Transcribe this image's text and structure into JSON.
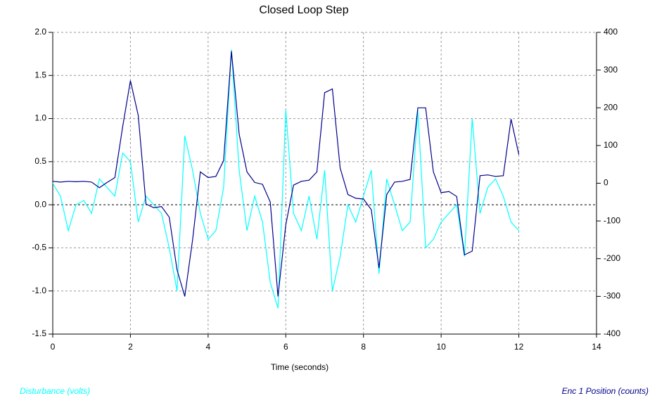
{
  "chart_data": {
    "type": "line",
    "title": "Closed Loop Step",
    "xlabel": "Time (seconds)",
    "x": [
      0,
      0.2,
      0.4,
      0.6,
      0.8,
      1.0,
      1.2,
      1.4,
      1.6,
      1.8,
      2.0,
      2.2,
      2.4,
      2.6,
      2.8,
      3.0,
      3.2,
      3.4,
      3.6,
      3.8,
      4.0,
      4.2,
      4.4,
      4.6,
      4.8,
      5.0,
      5.2,
      5.4,
      5.6,
      5.8,
      6.0,
      6.2,
      6.4,
      6.6,
      6.8,
      7.0,
      7.2,
      7.4,
      7.6,
      7.8,
      8.0,
      8.2,
      8.4,
      8.6,
      8.8,
      9.0,
      9.2,
      9.4,
      9.6,
      9.8,
      10.0,
      10.2,
      10.4,
      10.6,
      10.8,
      11.0,
      11.2,
      11.4,
      11.6,
      11.8,
      12.0
    ],
    "series": [
      {
        "name": "Disturbance (volts)",
        "color": "#00ffff",
        "axis": "y",
        "values": [
          0.25,
          0.1,
          -0.3,
          0.0,
          0.05,
          -0.1,
          0.3,
          0.2,
          0.1,
          0.6,
          0.5,
          -0.2,
          0.1,
          0.0,
          -0.1,
          -0.5,
          -1.0,
          0.8,
          0.4,
          -0.1,
          -0.4,
          -0.3,
          0.2,
          1.8,
          0.4,
          -0.3,
          0.1,
          -0.2,
          -0.9,
          -1.2,
          1.1,
          -0.1,
          -0.3,
          0.1,
          -0.4,
          0.4,
          -1.0,
          -0.6,
          0.0,
          -0.2,
          0.1,
          0.4,
          -0.8,
          0.3,
          0.0,
          -0.3,
          -0.2,
          1.1,
          -0.5,
          -0.4,
          -0.2,
          -0.1,
          0.0,
          -0.6,
          1.0,
          -0.1,
          0.2,
          0.3,
          0.1,
          -0.2,
          -0.3
        ]
      },
      {
        "name": "Enc 1 Position (counts)",
        "color": "#00008b",
        "axis": "y2",
        "values": [
          5,
          3,
          5,
          4,
          5,
          3,
          -12,
          2,
          15,
          150,
          272,
          180,
          -55,
          -65,
          -62,
          -90,
          -230,
          -300,
          -150,
          30,
          15,
          18,
          60,
          350,
          130,
          30,
          2,
          -3,
          -50,
          -300,
          -110,
          -5,
          5,
          8,
          30,
          240,
          250,
          40,
          -30,
          -40,
          -42,
          -70,
          -225,
          -30,
          3,
          5,
          10,
          200,
          200,
          30,
          -25,
          -22,
          -35,
          -190,
          -180,
          20,
          22,
          18,
          20,
          170,
          76
        ]
      }
    ],
    "xlim": [
      0,
      14
    ],
    "xticks": [
      0,
      2,
      4,
      6,
      8,
      10,
      12,
      14
    ],
    "ylim": [
      -1.5,
      2.0
    ],
    "yticks": [
      -1.5,
      {
        "value": -1.0,
        "label": "-1.0"
      },
      -0.5,
      {
        "value": 0.0,
        "label": "0.0"
      },
      0.5,
      {
        "value": 1.0,
        "label": "1.0"
      },
      1.5,
      {
        "value": 2.0,
        "label": "2.0"
      }
    ],
    "y2lim": [
      -400,
      400
    ],
    "y2ticks": [
      -400,
      -300,
      -200,
      -100,
      0,
      100,
      200,
      300,
      400
    ],
    "grid": true
  }
}
